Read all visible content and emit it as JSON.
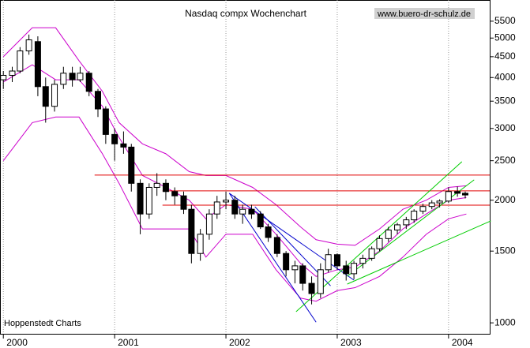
{
  "chart_data": {
    "type": "candlestick",
    "title": "Nasdaq compx Wochenchart",
    "source": "www.buero-dr-schulz.de",
    "credit": "Hoppenstedt Charts",
    "log_y": true,
    "color": "#000000",
    "xlim": [
      1999.97,
      2004.37
    ],
    "xticks": [
      {
        "value": 2000,
        "label": "2000"
      },
      {
        "value": 2001,
        "label": "2001"
      },
      {
        "value": 2002,
        "label": "2002"
      },
      {
        "value": 2003,
        "label": "2003"
      },
      {
        "value": 2004,
        "label": "2004"
      }
    ],
    "ylim": [
      940,
      6200
    ],
    "yticks": [
      1000,
      1500,
      2000,
      2500,
      3000,
      3500,
      4000,
      4500,
      5000,
      5500
    ],
    "x": [
      2000.0,
      2000.08,
      2000.15,
      2000.23,
      2000.31,
      2000.38,
      2000.46,
      2000.54,
      2000.62,
      2000.69,
      2000.77,
      2000.85,
      2000.92,
      2001.0,
      2001.08,
      2001.15,
      2001.23,
      2001.31,
      2001.38,
      2001.46,
      2001.54,
      2001.62,
      2001.69,
      2001.77,
      2001.85,
      2001.92,
      2002.0,
      2002.08,
      2002.15,
      2002.23,
      2002.31,
      2002.38,
      2002.46,
      2002.54,
      2002.62,
      2002.69,
      2002.77,
      2002.85,
      2002.92,
      2003.0,
      2003.08,
      2003.15,
      2003.23,
      2003.31,
      2003.38,
      2003.46,
      2003.54,
      2003.62,
      2003.69,
      2003.77,
      2003.85,
      2003.92,
      2004.0,
      2004.08,
      2004.15
    ],
    "open": [
      3950,
      4050,
      4150,
      4650,
      4900,
      3800,
      3400,
      3850,
      4100,
      3950,
      4100,
      3700,
      3350,
      2900,
      2750,
      2700,
      2200,
      1850,
      2150,
      2200,
      2100,
      2050,
      1900,
      1480,
      1650,
      1850,
      1980,
      2000,
      1850,
      1900,
      1850,
      1720,
      1620,
      1480,
      1350,
      1380,
      1250,
      1180,
      1350,
      1470,
      1380,
      1320,
      1400,
      1440,
      1520,
      1610,
      1690,
      1740,
      1790,
      1880,
      1930,
      1970,
      1990,
      2100,
      2080
    ],
    "high": [
      4150,
      4250,
      4750,
      5100,
      5050,
      4000,
      3950,
      4250,
      4250,
      4250,
      4150,
      3750,
      3400,
      3000,
      2950,
      2750,
      2250,
      2200,
      2330,
      2250,
      2150,
      2100,
      1950,
      1700,
      1900,
      2050,
      2100,
      2050,
      1950,
      1950,
      1880,
      1750,
      1650,
      1500,
      1420,
      1400,
      1300,
      1400,
      1520,
      1480,
      1420,
      1420,
      1470,
      1540,
      1640,
      1720,
      1760,
      1820,
      1900,
      1960,
      2000,
      2010,
      2150,
      2160,
      2100
    ],
    "low": [
      3750,
      3900,
      4100,
      4550,
      3600,
      3100,
      3300,
      3750,
      3800,
      3900,
      3600,
      3200,
      2750,
      2500,
      2600,
      2100,
      1650,
      1800,
      2050,
      2000,
      1950,
      1850,
      1400,
      1420,
      1600,
      1800,
      1900,
      1800,
      1750,
      1800,
      1700,
      1580,
      1450,
      1300,
      1250,
      1200,
      1110,
      1150,
      1330,
      1350,
      1270,
      1280,
      1360,
      1420,
      1500,
      1580,
      1650,
      1700,
      1760,
      1850,
      1900,
      1920,
      1970,
      2040,
      2020
    ],
    "close": [
      4050,
      4150,
      4650,
      4950,
      3800,
      3400,
      3850,
      4100,
      3950,
      4100,
      3700,
      3350,
      2900,
      2750,
      2700,
      2200,
      1850,
      2150,
      2200,
      2100,
      2050,
      1900,
      1480,
      1650,
      1850,
      1980,
      2000,
      1850,
      1900,
      1850,
      1720,
      1620,
      1480,
      1350,
      1380,
      1250,
      1180,
      1350,
      1470,
      1380,
      1320,
      1400,
      1440,
      1520,
      1610,
      1690,
      1740,
      1790,
      1880,
      1930,
      1970,
      1990,
      2100,
      2080,
      2060
    ],
    "bands": [
      {
        "color": "#cc00cc",
        "x": [
          2000.0,
          2000.26,
          2000.47,
          2000.68,
          2000.89,
          2001.04,
          2001.25,
          2001.46,
          2001.67,
          2001.82,
          2002.0,
          2002.24,
          2002.45,
          2002.67,
          2002.81,
          2003.0,
          2003.16,
          2003.38,
          2003.59,
          2003.8,
          2004.0,
          2004.16
        ],
        "values": [
          4500,
          5300,
          5300,
          4400,
          3700,
          3100,
          2750,
          2600,
          2350,
          2300,
          2300,
          2150,
          1950,
          1720,
          1600,
          1560,
          1550,
          1700,
          1900,
          2000,
          2150,
          2170
        ]
      },
      {
        "color": "#cc00cc",
        "x": [
          2000.0,
          2000.26,
          2000.47,
          2000.68,
          2000.89,
          2001.04,
          2001.25,
          2001.46,
          2001.67,
          2001.82,
          2002.0,
          2002.24,
          2002.45,
          2002.67,
          2002.81,
          2003.0,
          2003.16,
          2003.38,
          2003.59,
          2003.8,
          2004.0,
          2004.16
        ],
        "values": [
          3900,
          4300,
          3950,
          3950,
          3400,
          2850,
          2300,
          2150,
          2000,
          1800,
          1950,
          1900,
          1650,
          1400,
          1300,
          1350,
          1370,
          1500,
          1700,
          1850,
          2000,
          2030
        ]
      },
      {
        "color": "#cc00cc",
        "x": [
          2000.0,
          2000.26,
          2000.47,
          2000.68,
          2000.89,
          2001.04,
          2001.25,
          2001.46,
          2001.67,
          2001.82,
          2002.0,
          2002.24,
          2002.45,
          2002.67,
          2002.81,
          2003.0,
          2003.16,
          2003.38,
          2003.59,
          2003.8,
          2004.0,
          2004.16
        ],
        "values": [
          2500,
          3100,
          3200,
          3200,
          2600,
          2200,
          1700,
          1700,
          1700,
          1450,
          1650,
          1650,
          1350,
          1150,
          1130,
          1200,
          1220,
          1300,
          1450,
          1650,
          1800,
          1850
        ]
      }
    ],
    "hlines": [
      {
        "color": "#e00000",
        "value": 2305,
        "x": [
          2000.82,
          2004.37
        ]
      },
      {
        "color": "#e00000",
        "value": 2108,
        "x": [
          2001.43,
          2004.37
        ]
      },
      {
        "color": "#e00000",
        "value": 1945,
        "x": [
          2001.43,
          2004.37
        ]
      }
    ],
    "trendlines": [
      {
        "color": "#0000cc",
        "x": [
          2002.03,
          2002.81
        ],
        "values": [
          2080,
          1004
        ]
      },
      {
        "color": "#0000cc",
        "x": [
          2002.26,
          2002.94
        ],
        "values": [
          1928,
          1233
        ]
      },
      {
        "color": "#0000cc",
        "x": [
          2002.03,
          2003.15
        ],
        "values": [
          2080,
          1273
        ]
      },
      {
        "color": "#00cc00",
        "x": [
          2002.63,
          2004.12
        ],
        "values": [
          1065,
          2486
        ]
      },
      {
        "color": "#00cc00",
        "x": [
          2003.09,
          2004.23
        ],
        "values": [
          1301,
          2244
        ]
      },
      {
        "color": "#00cc00",
        "x": [
          2003.09,
          2004.38
        ],
        "values": [
          1245,
          1779
        ]
      }
    ]
  }
}
